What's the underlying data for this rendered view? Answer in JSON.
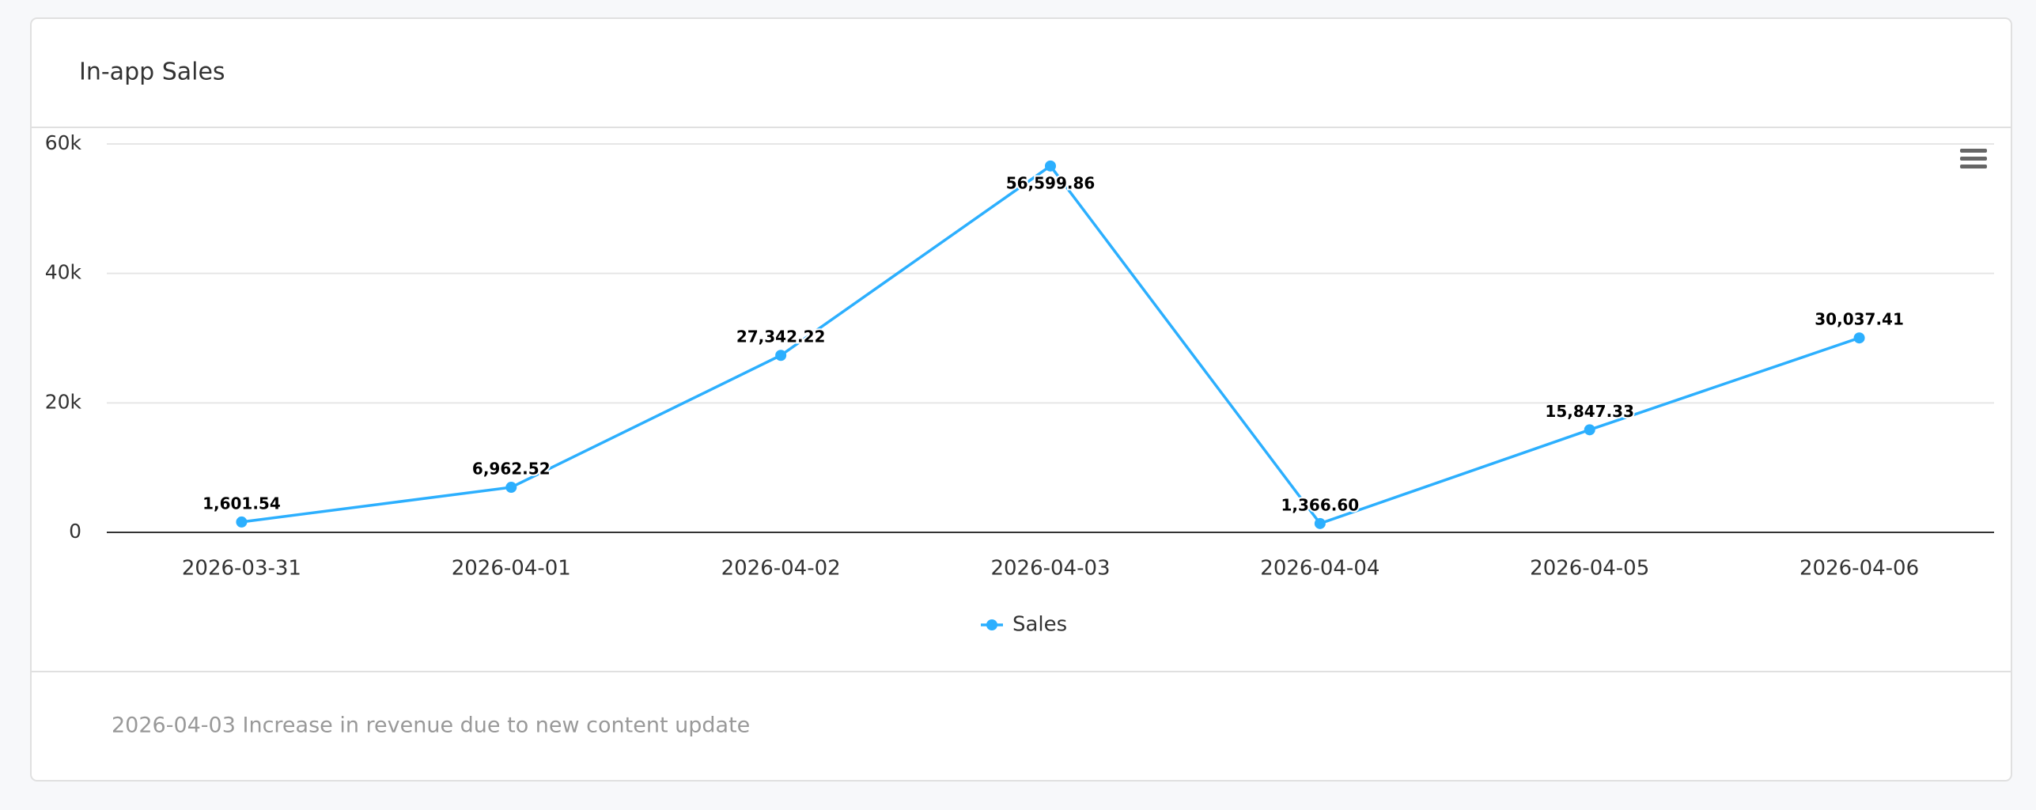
{
  "chart_data": {
    "type": "line",
    "title": "In-app Sales",
    "categories": [
      "2026-03-31",
      "2026-04-01",
      "2026-04-02",
      "2026-04-03",
      "2026-04-04",
      "2026-04-05",
      "2026-04-06"
    ],
    "series": [
      {
        "name": "Sales",
        "color": "#2caffe",
        "values": [
          1601.54,
          6962.52,
          27342.22,
          56599.86,
          1366.6,
          15847.33,
          30037.41
        ],
        "value_labels": [
          "1,601.54",
          "6,962.52",
          "27,342.22",
          "56,599.86",
          "1,366.60",
          "15,847.33",
          "30,037.41"
        ]
      }
    ],
    "ylim": [
      0,
      60000
    ],
    "yticks": [
      0,
      {
        "value": 20000,
        "label": "20k"
      },
      {
        "value": 40000,
        "label": "40k"
      },
      {
        "value": 60000,
        "label": "60k"
      }
    ],
    "grid": true,
    "legend": "bottom",
    "annotation": "2026-04-03 Increase in revenue due to new content update"
  }
}
